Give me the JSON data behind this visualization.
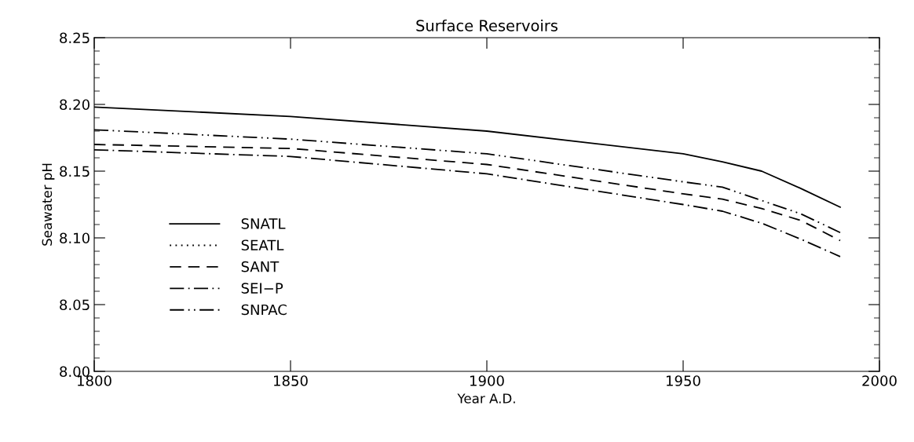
{
  "chart_data": {
    "type": "line",
    "title": "Surface Reservoirs",
    "xlabel": "Year A.D.",
    "ylabel": "Seawater pH",
    "x": [
      1800,
      1850,
      1900,
      1950,
      1960,
      1970,
      1980,
      1990
    ],
    "series": [
      {
        "name": "SNATL",
        "color": "#000000",
        "line_style": "solid",
        "values": [
          8.198,
          8.191,
          8.18,
          8.163,
          8.157,
          8.15,
          8.137,
          8.123
        ]
      },
      {
        "name": "SEATL",
        "color": "#000000",
        "line_style": "dotted",
        "values": [
          null,
          null,
          null,
          null,
          null,
          null,
          null,
          null
        ]
      },
      {
        "name": "SANT",
        "color": "#000000",
        "line_style": "dashed",
        "values": [
          8.17,
          8.167,
          8.155,
          8.133,
          8.129,
          8.122,
          8.113,
          8.098
        ]
      },
      {
        "name": "SEI−P",
        "color": "#000000",
        "line_style": "dashdot",
        "values": [
          8.166,
          8.161,
          8.148,
          8.125,
          8.12,
          8.111,
          8.099,
          8.086
        ]
      },
      {
        "name": "SNPAC",
        "color": "#000000",
        "line_style": "dashdotdot",
        "values": [
          8.181,
          8.174,
          8.163,
          8.142,
          8.138,
          8.128,
          8.118,
          8.104
        ]
      }
    ],
    "xlim": [
      1800,
      2000
    ],
    "xticks": [
      1800,
      1850,
      1900,
      1950,
      2000
    ],
    "ylim": [
      8.0,
      8.25
    ],
    "yticks": [
      {
        "value": 8.0,
        "label": "8.00"
      },
      {
        "value": 8.05,
        "label": "8.05"
      },
      {
        "value": 8.1,
        "label": "8.10"
      },
      {
        "value": 8.15,
        "label": "8.15"
      },
      {
        "value": 8.2,
        "label": "8.20"
      },
      {
        "value": 8.25,
        "label": "8.25"
      }
    ],
    "grid": false,
    "legend": "left",
    "marker": "none"
  }
}
